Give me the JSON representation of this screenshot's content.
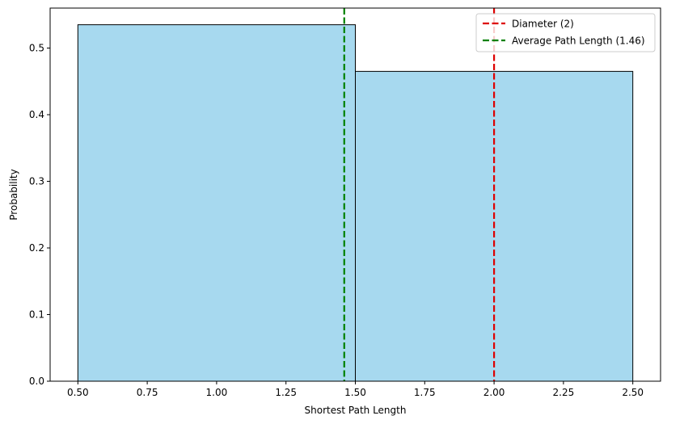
{
  "chart_data": {
    "type": "bar",
    "title": "",
    "xlabel": "Shortest Path Length",
    "ylabel": "Probability",
    "xlim": [
      0.4,
      2.6
    ],
    "ylim": [
      0,
      0.56
    ],
    "bins": [
      {
        "x0": 0.5,
        "x1": 1.5,
        "value": 0.535
      },
      {
        "x0": 1.5,
        "x1": 2.5,
        "value": 0.465
      }
    ],
    "bar_color": "#a7d9ef",
    "bar_edge_color": "#000000",
    "xticks": [
      0.5,
      0.75,
      1.0,
      1.25,
      1.5,
      1.75,
      2.0,
      2.25,
      2.5
    ],
    "xtick_labels": [
      "0.50",
      "0.75",
      "1.00",
      "1.25",
      "1.50",
      "1.75",
      "2.00",
      "2.25",
      "2.50"
    ],
    "yticks": [
      0.0,
      0.1,
      0.2,
      0.3,
      0.4,
      0.5
    ],
    "ytick_labels": [
      "0.0",
      "0.1",
      "0.2",
      "0.3",
      "0.4",
      "0.5"
    ],
    "reference_lines": [
      {
        "label": "Diameter (2)",
        "x": 2.0,
        "color": "#dd0000",
        "style": "dashed"
      },
      {
        "label": "Average Path Length (1.46)",
        "x": 1.46,
        "color": "#008000",
        "style": "dashed"
      }
    ],
    "legend_position": "top-right",
    "grid": false
  }
}
